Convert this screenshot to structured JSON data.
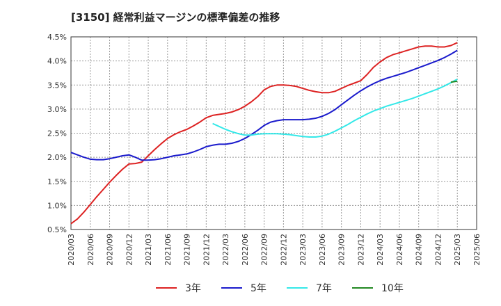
{
  "chart_data": {
    "type": "line",
    "title": "[3150]  経常利益マージンの標準偏差の推移",
    "xlabel": "",
    "ylabel": "",
    "ylim": [
      0.5,
      4.5
    ],
    "y_ticks": [
      "0.5%",
      "1.0%",
      "1.5%",
      "2.0%",
      "2.5%",
      "3.0%",
      "3.5%",
      "4.0%",
      "4.5%"
    ],
    "x_ticks": [
      "2020/03",
      "2020/06",
      "2020/09",
      "2020/12",
      "2021/03",
      "2021/06",
      "2021/09",
      "2021/12",
      "2022/03",
      "2022/06",
      "2022/09",
      "2022/12",
      "2023/03",
      "2023/06",
      "2023/09",
      "2023/12",
      "2024/03",
      "2024/06",
      "2024/09",
      "2024/12",
      "2025/03",
      "2025/06"
    ],
    "grid": true,
    "legend_position": "bottom",
    "series": [
      {
        "name": "3年",
        "color": "#dd2222",
        "values": [
          [
            "2020/03",
            0.62
          ],
          [
            "2020/04",
            0.72
          ],
          [
            "2020/05",
            0.86
          ],
          [
            "2020/06",
            1.02
          ],
          [
            "2020/07",
            1.18
          ],
          [
            "2020/08",
            1.33
          ],
          [
            "2020/09",
            1.48
          ],
          [
            "2020/10",
            1.62
          ],
          [
            "2020/11",
            1.75
          ],
          [
            "2020/12",
            1.86
          ],
          [
            "2021/01",
            1.87
          ],
          [
            "2021/02",
            1.9
          ],
          [
            "2021/03",
            2.03
          ],
          [
            "2021/04",
            2.16
          ],
          [
            "2021/05",
            2.28
          ],
          [
            "2021/06",
            2.39
          ],
          [
            "2021/07",
            2.47
          ],
          [
            "2021/08",
            2.53
          ],
          [
            "2021/09",
            2.58
          ],
          [
            "2021/10",
            2.65
          ],
          [
            "2021/11",
            2.73
          ],
          [
            "2021/12",
            2.82
          ],
          [
            "2022/01",
            2.87
          ],
          [
            "2022/02",
            2.89
          ],
          [
            "2022/03",
            2.91
          ],
          [
            "2022/04",
            2.94
          ],
          [
            "2022/05",
            2.99
          ],
          [
            "2022/06",
            3.06
          ],
          [
            "2022/07",
            3.15
          ],
          [
            "2022/08",
            3.26
          ],
          [
            "2022/09",
            3.4
          ],
          [
            "2022/10",
            3.47
          ],
          [
            "2022/11",
            3.5
          ],
          [
            "2022/12",
            3.5
          ],
          [
            "2023/01",
            3.49
          ],
          [
            "2023/02",
            3.47
          ],
          [
            "2023/03",
            3.43
          ],
          [
            "2023/04",
            3.39
          ],
          [
            "2023/05",
            3.36
          ],
          [
            "2023/06",
            3.34
          ],
          [
            "2023/07",
            3.34
          ],
          [
            "2023/08",
            3.37
          ],
          [
            "2023/09",
            3.43
          ],
          [
            "2023/10",
            3.49
          ],
          [
            "2023/11",
            3.54
          ],
          [
            "2023/12",
            3.59
          ],
          [
            "2024/01",
            3.72
          ],
          [
            "2024/02",
            3.87
          ],
          [
            "2024/03",
            3.98
          ],
          [
            "2024/04",
            4.07
          ],
          [
            "2024/05",
            4.13
          ],
          [
            "2024/06",
            4.17
          ],
          [
            "2024/07",
            4.21
          ],
          [
            "2024/08",
            4.25
          ],
          [
            "2024/09",
            4.29
          ],
          [
            "2024/10",
            4.31
          ],
          [
            "2024/11",
            4.31
          ],
          [
            "2024/12",
            4.29
          ],
          [
            "2025/01",
            4.29
          ],
          [
            "2025/02",
            4.32
          ],
          [
            "2025/03",
            4.38
          ]
        ]
      },
      {
        "name": "5年",
        "color": "#1a1acc",
        "values": [
          [
            "2020/03",
            2.1
          ],
          [
            "2020/04",
            2.05
          ],
          [
            "2020/05",
            2.0
          ],
          [
            "2020/06",
            1.96
          ],
          [
            "2020/07",
            1.95
          ],
          [
            "2020/08",
            1.95
          ],
          [
            "2020/09",
            1.97
          ],
          [
            "2020/10",
            2.0
          ],
          [
            "2020/11",
            2.03
          ],
          [
            "2020/12",
            2.05
          ],
          [
            "2021/01",
            2.0
          ],
          [
            "2021/02",
            1.94
          ],
          [
            "2021/03",
            1.94
          ],
          [
            "2021/04",
            1.95
          ],
          [
            "2021/05",
            1.97
          ],
          [
            "2021/06",
            2.0
          ],
          [
            "2021/07",
            2.03
          ],
          [
            "2021/08",
            2.05
          ],
          [
            "2021/09",
            2.07
          ],
          [
            "2021/10",
            2.11
          ],
          [
            "2021/11",
            2.16
          ],
          [
            "2021/12",
            2.22
          ],
          [
            "2022/01",
            2.25
          ],
          [
            "2022/02",
            2.27
          ],
          [
            "2022/03",
            2.27
          ],
          [
            "2022/04",
            2.29
          ],
          [
            "2022/05",
            2.33
          ],
          [
            "2022/06",
            2.39
          ],
          [
            "2022/07",
            2.47
          ],
          [
            "2022/08",
            2.56
          ],
          [
            "2022/09",
            2.66
          ],
          [
            "2022/10",
            2.73
          ],
          [
            "2022/11",
            2.76
          ],
          [
            "2022/12",
            2.78
          ],
          [
            "2023/01",
            2.78
          ],
          [
            "2023/02",
            2.78
          ],
          [
            "2023/03",
            2.78
          ],
          [
            "2023/04",
            2.79
          ],
          [
            "2023/05",
            2.81
          ],
          [
            "2023/06",
            2.85
          ],
          [
            "2023/07",
            2.91
          ],
          [
            "2023/08",
            2.99
          ],
          [
            "2023/09",
            3.09
          ],
          [
            "2023/10",
            3.19
          ],
          [
            "2023/11",
            3.29
          ],
          [
            "2023/12",
            3.38
          ],
          [
            "2024/01",
            3.46
          ],
          [
            "2024/02",
            3.53
          ],
          [
            "2024/03",
            3.59
          ],
          [
            "2024/04",
            3.64
          ],
          [
            "2024/05",
            3.68
          ],
          [
            "2024/06",
            3.72
          ],
          [
            "2024/07",
            3.76
          ],
          [
            "2024/08",
            3.81
          ],
          [
            "2024/09",
            3.86
          ],
          [
            "2024/10",
            3.91
          ],
          [
            "2024/11",
            3.96
          ],
          [
            "2024/12",
            4.01
          ],
          [
            "2025/01",
            4.07
          ],
          [
            "2025/02",
            4.14
          ],
          [
            "2025/03",
            4.22
          ]
        ]
      },
      {
        "name": "7年",
        "color": "#33e8e8",
        "values": [
          [
            "2022/01",
            2.7
          ],
          [
            "2022/02",
            2.64
          ],
          [
            "2022/03",
            2.58
          ],
          [
            "2022/04",
            2.53
          ],
          [
            "2022/05",
            2.49
          ],
          [
            "2022/06",
            2.46
          ],
          [
            "2022/07",
            2.46
          ],
          [
            "2022/08",
            2.48
          ],
          [
            "2022/09",
            2.49
          ],
          [
            "2022/10",
            2.49
          ],
          [
            "2022/11",
            2.49
          ],
          [
            "2022/12",
            2.48
          ],
          [
            "2023/01",
            2.47
          ],
          [
            "2023/02",
            2.45
          ],
          [
            "2023/03",
            2.43
          ],
          [
            "2023/04",
            2.42
          ],
          [
            "2023/05",
            2.42
          ],
          [
            "2023/06",
            2.44
          ],
          [
            "2023/07",
            2.48
          ],
          [
            "2023/08",
            2.54
          ],
          [
            "2023/09",
            2.61
          ],
          [
            "2023/10",
            2.68
          ],
          [
            "2023/11",
            2.76
          ],
          [
            "2023/12",
            2.83
          ],
          [
            "2024/01",
            2.9
          ],
          [
            "2024/02",
            2.96
          ],
          [
            "2024/03",
            3.01
          ],
          [
            "2024/04",
            3.06
          ],
          [
            "2024/05",
            3.1
          ],
          [
            "2024/06",
            3.14
          ],
          [
            "2024/07",
            3.18
          ],
          [
            "2024/08",
            3.22
          ],
          [
            "2024/09",
            3.27
          ],
          [
            "2024/10",
            3.32
          ],
          [
            "2024/11",
            3.37
          ],
          [
            "2024/12",
            3.42
          ],
          [
            "2025/01",
            3.48
          ],
          [
            "2025/02",
            3.55
          ],
          [
            "2025/03",
            3.62
          ]
        ]
      },
      {
        "name": "10年",
        "color": "#228822",
        "values": [
          [
            "2025/02",
            3.56
          ],
          [
            "2025/03",
            3.58
          ]
        ]
      }
    ]
  }
}
